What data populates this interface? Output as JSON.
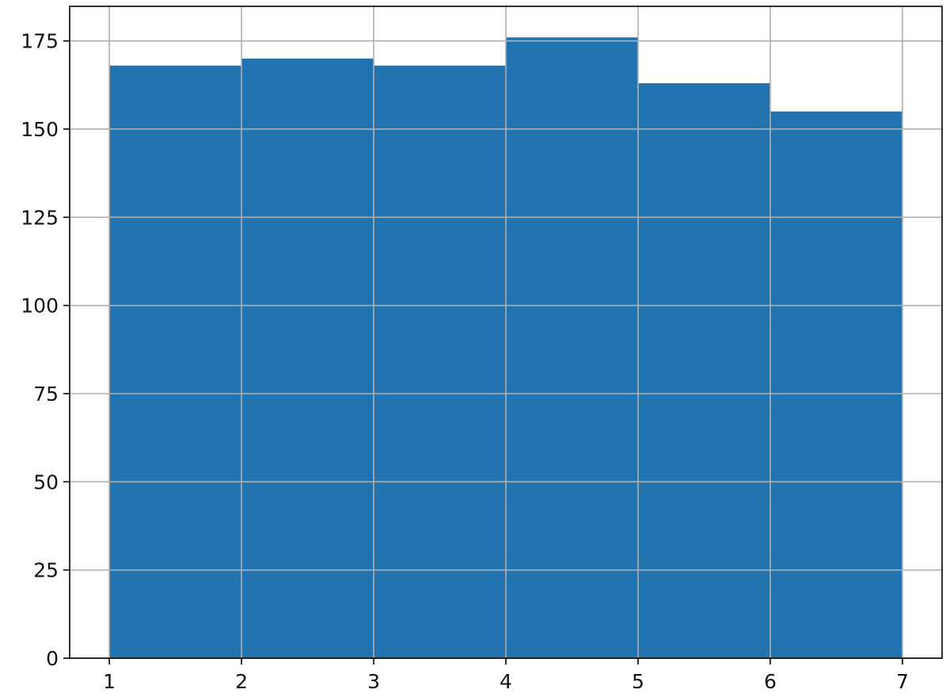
{
  "chart_data": {
    "type": "bar",
    "subtype": "histogram",
    "bin_edges": [
      1,
      2,
      3,
      4,
      5,
      6,
      7
    ],
    "values": [
      168,
      170,
      168,
      176,
      163,
      155
    ],
    "title": "",
    "xlabel": "",
    "ylabel": "",
    "xlim": [
      0.7,
      7.3
    ],
    "ylim": [
      0,
      184.8
    ],
    "xticks": [
      1,
      2,
      3,
      4,
      5,
      6,
      7
    ],
    "yticks": [
      0,
      25,
      50,
      75,
      100,
      125,
      150,
      175
    ],
    "grid": true,
    "colors": {
      "bar": "#2274b0",
      "grid": "#b0b0b0",
      "axis": "#000000"
    }
  }
}
